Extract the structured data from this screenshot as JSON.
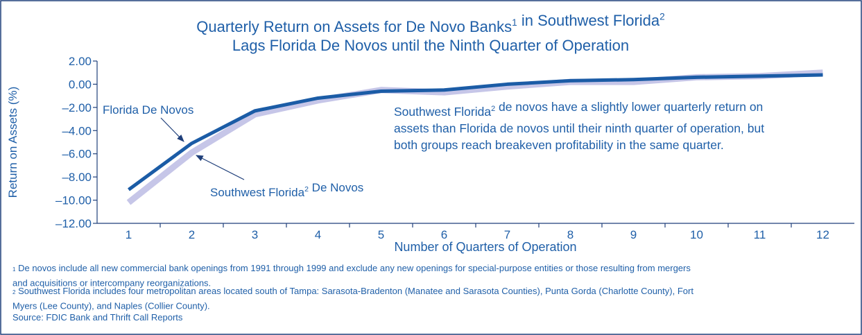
{
  "chart_data": {
    "type": "line",
    "title": [
      [
        "Quarterly Return on Assets for De Novo Banks",
        {
          "sup": "1"
        },
        " in Southwest Florida",
        {
          "sup": "2"
        }
      ],
      [
        "Lags Florida De Novos until the Ninth Quarter of Operation"
      ]
    ],
    "x_label": "Number of Quarters of Operation",
    "y_label": "Return on Assets (%)",
    "categories": [
      "1",
      "2",
      "3",
      "4",
      "5",
      "6",
      "7",
      "8",
      "9",
      "10",
      "11",
      "12"
    ],
    "series": [
      {
        "name": [
          [
            "Southwest Florida",
            {
              "sup": "2"
            },
            " De Novos"
          ]
        ],
        "color": "#c6c6e8",
        "width": 9,
        "values": [
          -10.2,
          -5.9,
          -2.6,
          -1.4,
          -0.5,
          -0.7,
          -0.2,
          0.2,
          0.2,
          0.6,
          0.7,
          1.0
        ]
      },
      {
        "name": [
          [
            "Florida De Novos"
          ]
        ],
        "color": "#1b5ca6",
        "width": 5,
        "values": [
          -9.1,
          -5.1,
          -2.3,
          -1.2,
          -0.6,
          -0.5,
          0.0,
          0.3,
          0.4,
          0.6,
          0.7,
          0.8
        ]
      }
    ],
    "ylim": [
      -12,
      2
    ],
    "yticks": [
      {
        "value": 2,
        "label": "2.00"
      },
      {
        "value": 0,
        "label": "0.00"
      },
      {
        "value": -2,
        "label": "–2.00"
      },
      {
        "value": -4,
        "label": "–4.00"
      },
      {
        "value": -6,
        "label": "–6.00"
      },
      {
        "value": -8,
        "label": "–8.00"
      },
      {
        "value": -10,
        "label": "–10.00"
      },
      {
        "value": -12,
        "label": "–12.00"
      }
    ],
    "annotation": [
      [
        "Southwest Florida",
        {
          "sup": "2"
        },
        " de novos have a slightly lower quarterly return on"
      ],
      [
        "assets than Florida de novos until their ninth quarter of operation, but"
      ],
      [
        "both groups reach breakeven profitability in the same quarter."
      ]
    ],
    "footnotes": [
      [
        {
          "sup": "1"
        },
        " De novos include all new commercial bank openings from 1991 through 1999 and exclude any new openings for special-purpose entities or those resulting from mergers"
      ],
      [
        "and acquisitions or intercompany reorganizations."
      ],
      [
        {
          "sup": "2"
        },
        " Southwest Florida includes four metropolitan areas located south of Tampa: Sarasota-Bradenton (Manatee and Sarasota Counties), Punta Gorda (Charlotte County), Fort"
      ],
      [
        "Myers (Lee County), and Naples (Collier County)."
      ],
      [
        "Source: FDIC Bank and Thrift Call Reports"
      ]
    ]
  }
}
